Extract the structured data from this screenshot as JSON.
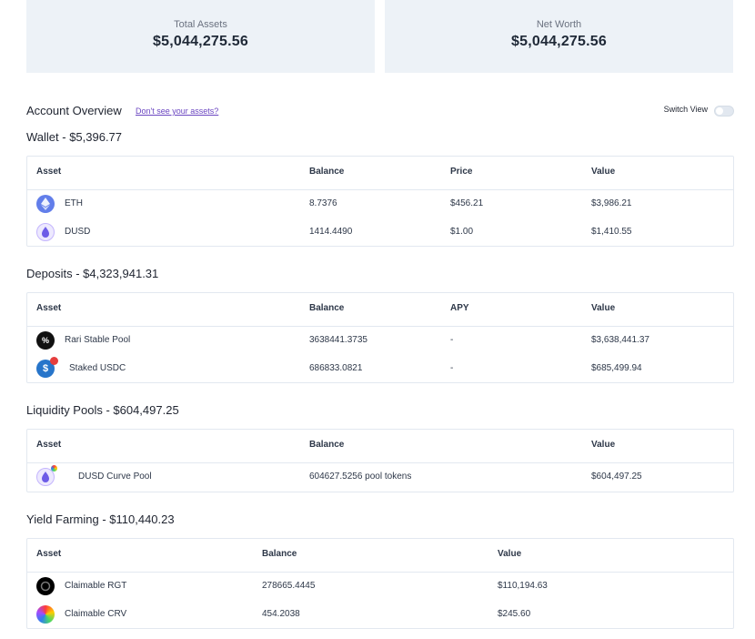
{
  "summary": {
    "total_assets_label": "Total Assets",
    "total_assets_value": "$5,044,275.56",
    "net_worth_label": "Net Worth",
    "net_worth_value": "$5,044,275.56"
  },
  "overview": {
    "title": "Account Overview",
    "link": "Don't see your assets?",
    "switch_label": "Switch View",
    "switch_on": false
  },
  "wallet": {
    "title": "Wallet - $5,396.77",
    "headers": [
      "Asset",
      "Balance",
      "Price",
      "Value"
    ],
    "rows": [
      {
        "icon": "eth-icon",
        "asset": "ETH",
        "balance": "8.7376",
        "price": "$456.21",
        "value": "$3,986.21"
      },
      {
        "icon": "dusd-icon",
        "asset": "DUSD",
        "balance": "1414.4490",
        "price": "$1.00",
        "value": "$1,410.55"
      }
    ]
  },
  "deposits": {
    "title": "Deposits - $4,323,941.31",
    "headers": [
      "Asset",
      "Balance",
      "APY",
      "Value"
    ],
    "rows": [
      {
        "icon": "rari-icon",
        "asset": "Rari Stable Pool",
        "balance": "3638441.3735",
        "apy": "-",
        "value": "$3,638,441.37"
      },
      {
        "icon": "usdc-icon",
        "asset": "Staked USDC",
        "balance": "686833.0821",
        "apy": "-",
        "value": "$685,499.94"
      }
    ]
  },
  "liquidity": {
    "title": "Liquidity Pools - $604,497.25",
    "headers": [
      "Asset",
      "Balance",
      "Value"
    ],
    "rows": [
      {
        "icon": "dusd-curve-icon",
        "asset": "DUSD Curve Pool",
        "balance": "604627.5256 pool tokens",
        "value": "$604,497.25"
      }
    ]
  },
  "farming": {
    "title": "Yield Farming - $110,440.23",
    "headers": [
      "Asset",
      "Balance",
      "Value"
    ],
    "rows": [
      {
        "icon": "rgt-icon",
        "asset": "Claimable RGT",
        "balance": "278665.4445",
        "value": "$110,194.63"
      },
      {
        "icon": "crv-icon",
        "asset": "Claimable CRV",
        "balance": "454.2038",
        "value": "$245.60"
      }
    ]
  },
  "colors": {
    "card_bg": "#edf2f7",
    "link": "#6b46c1",
    "border": "#e2e8f0"
  }
}
